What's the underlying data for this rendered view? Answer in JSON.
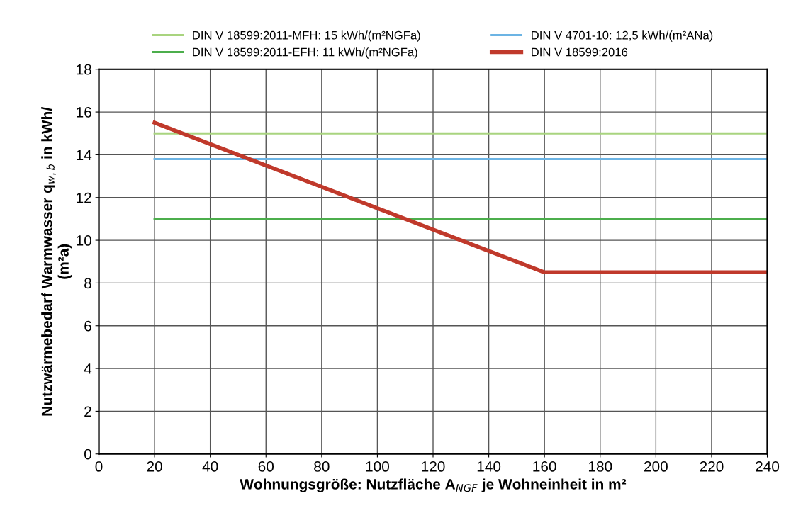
{
  "chart_data": {
    "type": "line",
    "xlabel": "Wohnungsgröße: Nutzfläche A$_{NGF}$ je Wohneinheit in m²",
    "ylabel": "Nutzwärmebedarf Warmwasser q$_{w,b}$ in kWh/\n(m²a)",
    "series": [
      {
        "name": "DIN V 18599:2011-MFH: 15 kWh/(m²NGFa)",
        "color": "#a9d47f",
        "x": [
          20,
          240
        ],
        "values": [
          15,
          15
        ]
      },
      {
        "name": "DIN V 18599:2011-EFH: 11 kWh/(m²NGFa)",
        "color": "#4cae4c",
        "x": [
          20,
          240
        ],
        "values": [
          11,
          11
        ]
      },
      {
        "name": "DIN V 4701-10: 12,5 kWh/(m²ANa)",
        "color": "#6cb4e4",
        "x": [
          20,
          240
        ],
        "values": [
          13.8,
          13.8
        ]
      },
      {
        "name": "DIN V 18599:2016",
        "color": "#c0392b",
        "x": [
          20,
          160,
          240
        ],
        "values": [
          15.5,
          8.5,
          8.5
        ]
      }
    ],
    "xlim": [
      0,
      240
    ],
    "xticks": [
      0,
      20,
      40,
      60,
      80,
      100,
      120,
      140,
      160,
      180,
      200,
      220,
      240
    ],
    "ylim": [
      0,
      18
    ],
    "yticks": [
      0,
      2,
      4,
      6,
      8,
      10,
      12,
      14,
      16,
      18
    ],
    "grid": true,
    "legend": "top",
    "marker": "none",
    "line_style": "solid"
  }
}
